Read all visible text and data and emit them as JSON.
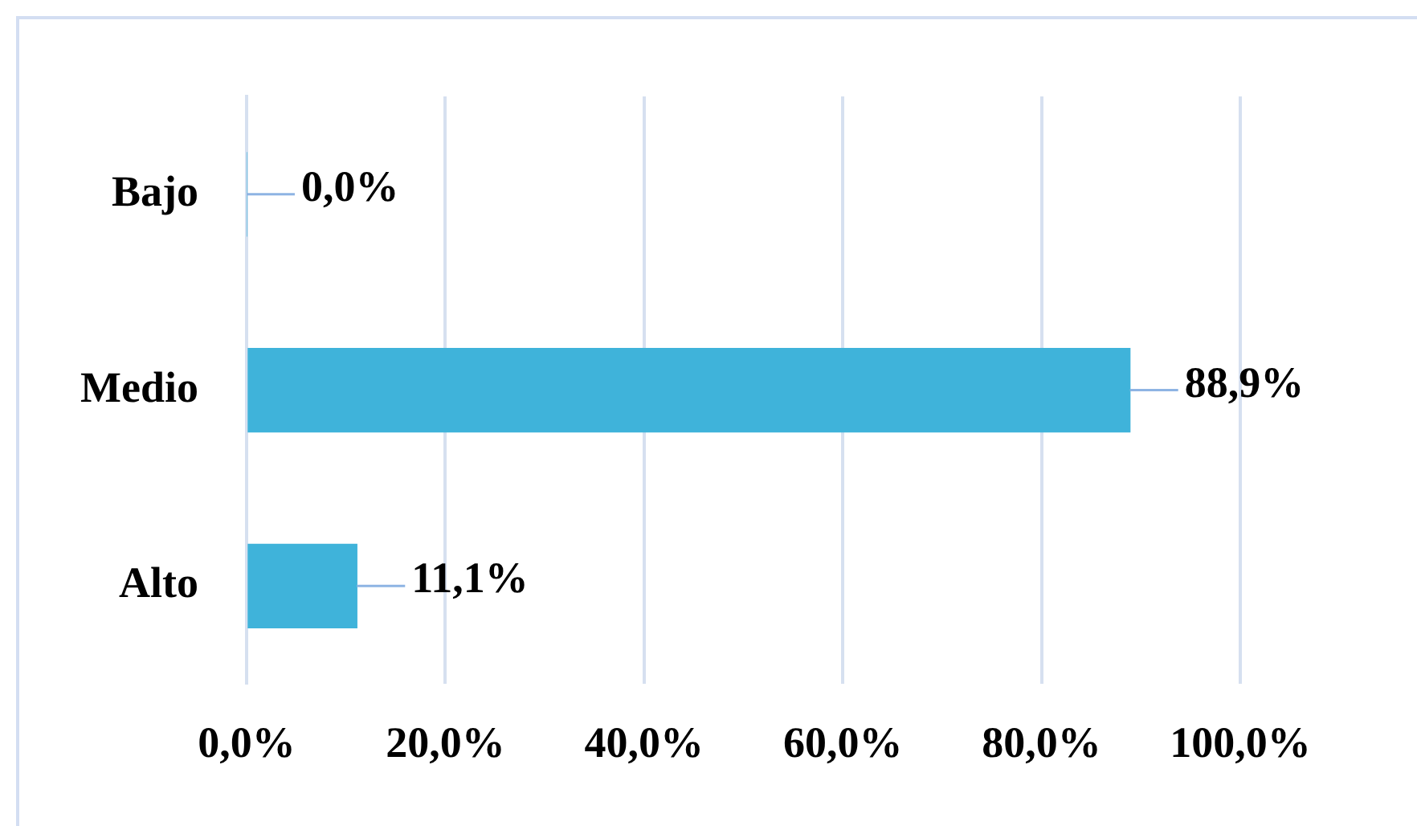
{
  "chart_data": {
    "type": "bar",
    "orientation": "horizontal",
    "categories": [
      "Bajo",
      "Medio",
      "Alto"
    ],
    "values": [
      0.0,
      88.9,
      11.1
    ],
    "value_labels": [
      "0,0%",
      "88,9%",
      "11,1%"
    ],
    "color": "#3fb3da",
    "xlim": [
      0,
      100
    ],
    "xticks": [
      {
        "value": 0,
        "label": "0,0%"
      },
      {
        "value": 20,
        "label": "20,0%"
      },
      {
        "value": 40,
        "label": "40,0%"
      },
      {
        "value": 60,
        "label": "60,0%"
      },
      {
        "value": 80,
        "label": "80,0%"
      },
      {
        "value": 100,
        "label": "100,0%"
      }
    ],
    "grid": "x"
  }
}
